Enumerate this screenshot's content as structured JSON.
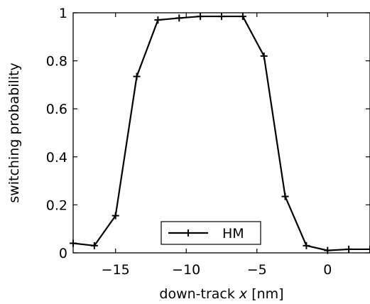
{
  "chart_data": {
    "type": "line",
    "xlabel": "down-track x [nm]",
    "xlabel_parts": {
      "before": "down-track ",
      "variable": "x",
      "after": " [nm]"
    },
    "ylabel": "switching probability",
    "xlim": [
      -18,
      3
    ],
    "ylim": [
      0,
      1
    ],
    "xticks": [
      -15,
      -10,
      -5,
      0
    ],
    "xtick_labels": [
      "−15",
      "−10",
      "−5",
      "0"
    ],
    "yticks": [
      0,
      0.2,
      0.4,
      0.6,
      0.8,
      1
    ],
    "ytick_labels": [
      "0",
      "0.2",
      "0.4",
      "0.6",
      "0.8",
      "1"
    ],
    "grid": false,
    "legend": {
      "position": "bottom-center",
      "entries": [
        "HM"
      ]
    },
    "series": [
      {
        "name": "HM",
        "color": "#000000",
        "marker": "plus",
        "x": [
          -18,
          -16.5,
          -15,
          -13.5,
          -12,
          -10.5,
          -9,
          -7.5,
          -6,
          -4.5,
          -3,
          -1.5,
          0,
          1.5,
          3
        ],
        "y": [
          0.04,
          0.03,
          0.155,
          0.735,
          0.97,
          0.978,
          0.985,
          0.985,
          0.985,
          0.82,
          0.235,
          0.03,
          0.01,
          0.015,
          0.015
        ]
      }
    ]
  }
}
